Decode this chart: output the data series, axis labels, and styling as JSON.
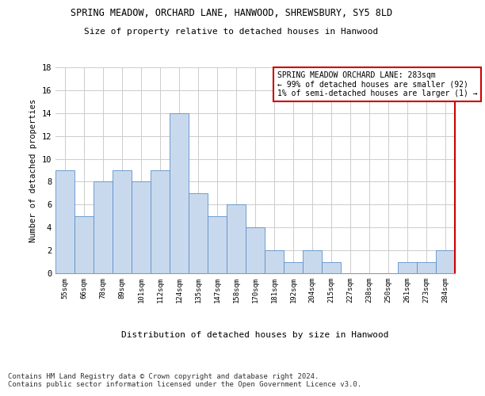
{
  "title1": "SPRING MEADOW, ORCHARD LANE, HANWOOD, SHREWSBURY, SY5 8LD",
  "title2": "Size of property relative to detached houses in Hanwood",
  "xlabel": "Distribution of detached houses by size in Hanwood",
  "ylabel": "Number of detached properties",
  "categories": [
    "55sqm",
    "66sqm",
    "78sqm",
    "89sqm",
    "101sqm",
    "112sqm",
    "124sqm",
    "135sqm",
    "147sqm",
    "158sqm",
    "170sqm",
    "181sqm",
    "192sqm",
    "204sqm",
    "215sqm",
    "227sqm",
    "238sqm",
    "250sqm",
    "261sqm",
    "273sqm",
    "284sqm"
  ],
  "values": [
    9,
    5,
    8,
    9,
    8,
    9,
    14,
    7,
    5,
    6,
    4,
    2,
    1,
    2,
    1,
    0,
    0,
    0,
    1,
    1,
    2
  ],
  "bar_color": "#c9d9ed",
  "bar_edge_color": "#5b8fc9",
  "annotation_title": "SPRING MEADOW ORCHARD LANE: 283sqm",
  "annotation_line1": "← 99% of detached houses are smaller (92)",
  "annotation_line2": "1% of semi-detached houses are larger (1) →",
  "annotation_box_color": "#ffffff",
  "annotation_box_edge": "#cc0000",
  "ylim": [
    0,
    18
  ],
  "yticks": [
    0,
    2,
    4,
    6,
    8,
    10,
    12,
    14,
    16,
    18
  ],
  "footer1": "Contains HM Land Registry data © Crown copyright and database right 2024.",
  "footer2": "Contains public sector information licensed under the Open Government Licence v3.0.",
  "grid_color": "#cccccc",
  "right_border_color": "#cc0000",
  "figsize": [
    6.0,
    5.0
  ],
  "dpi": 100
}
